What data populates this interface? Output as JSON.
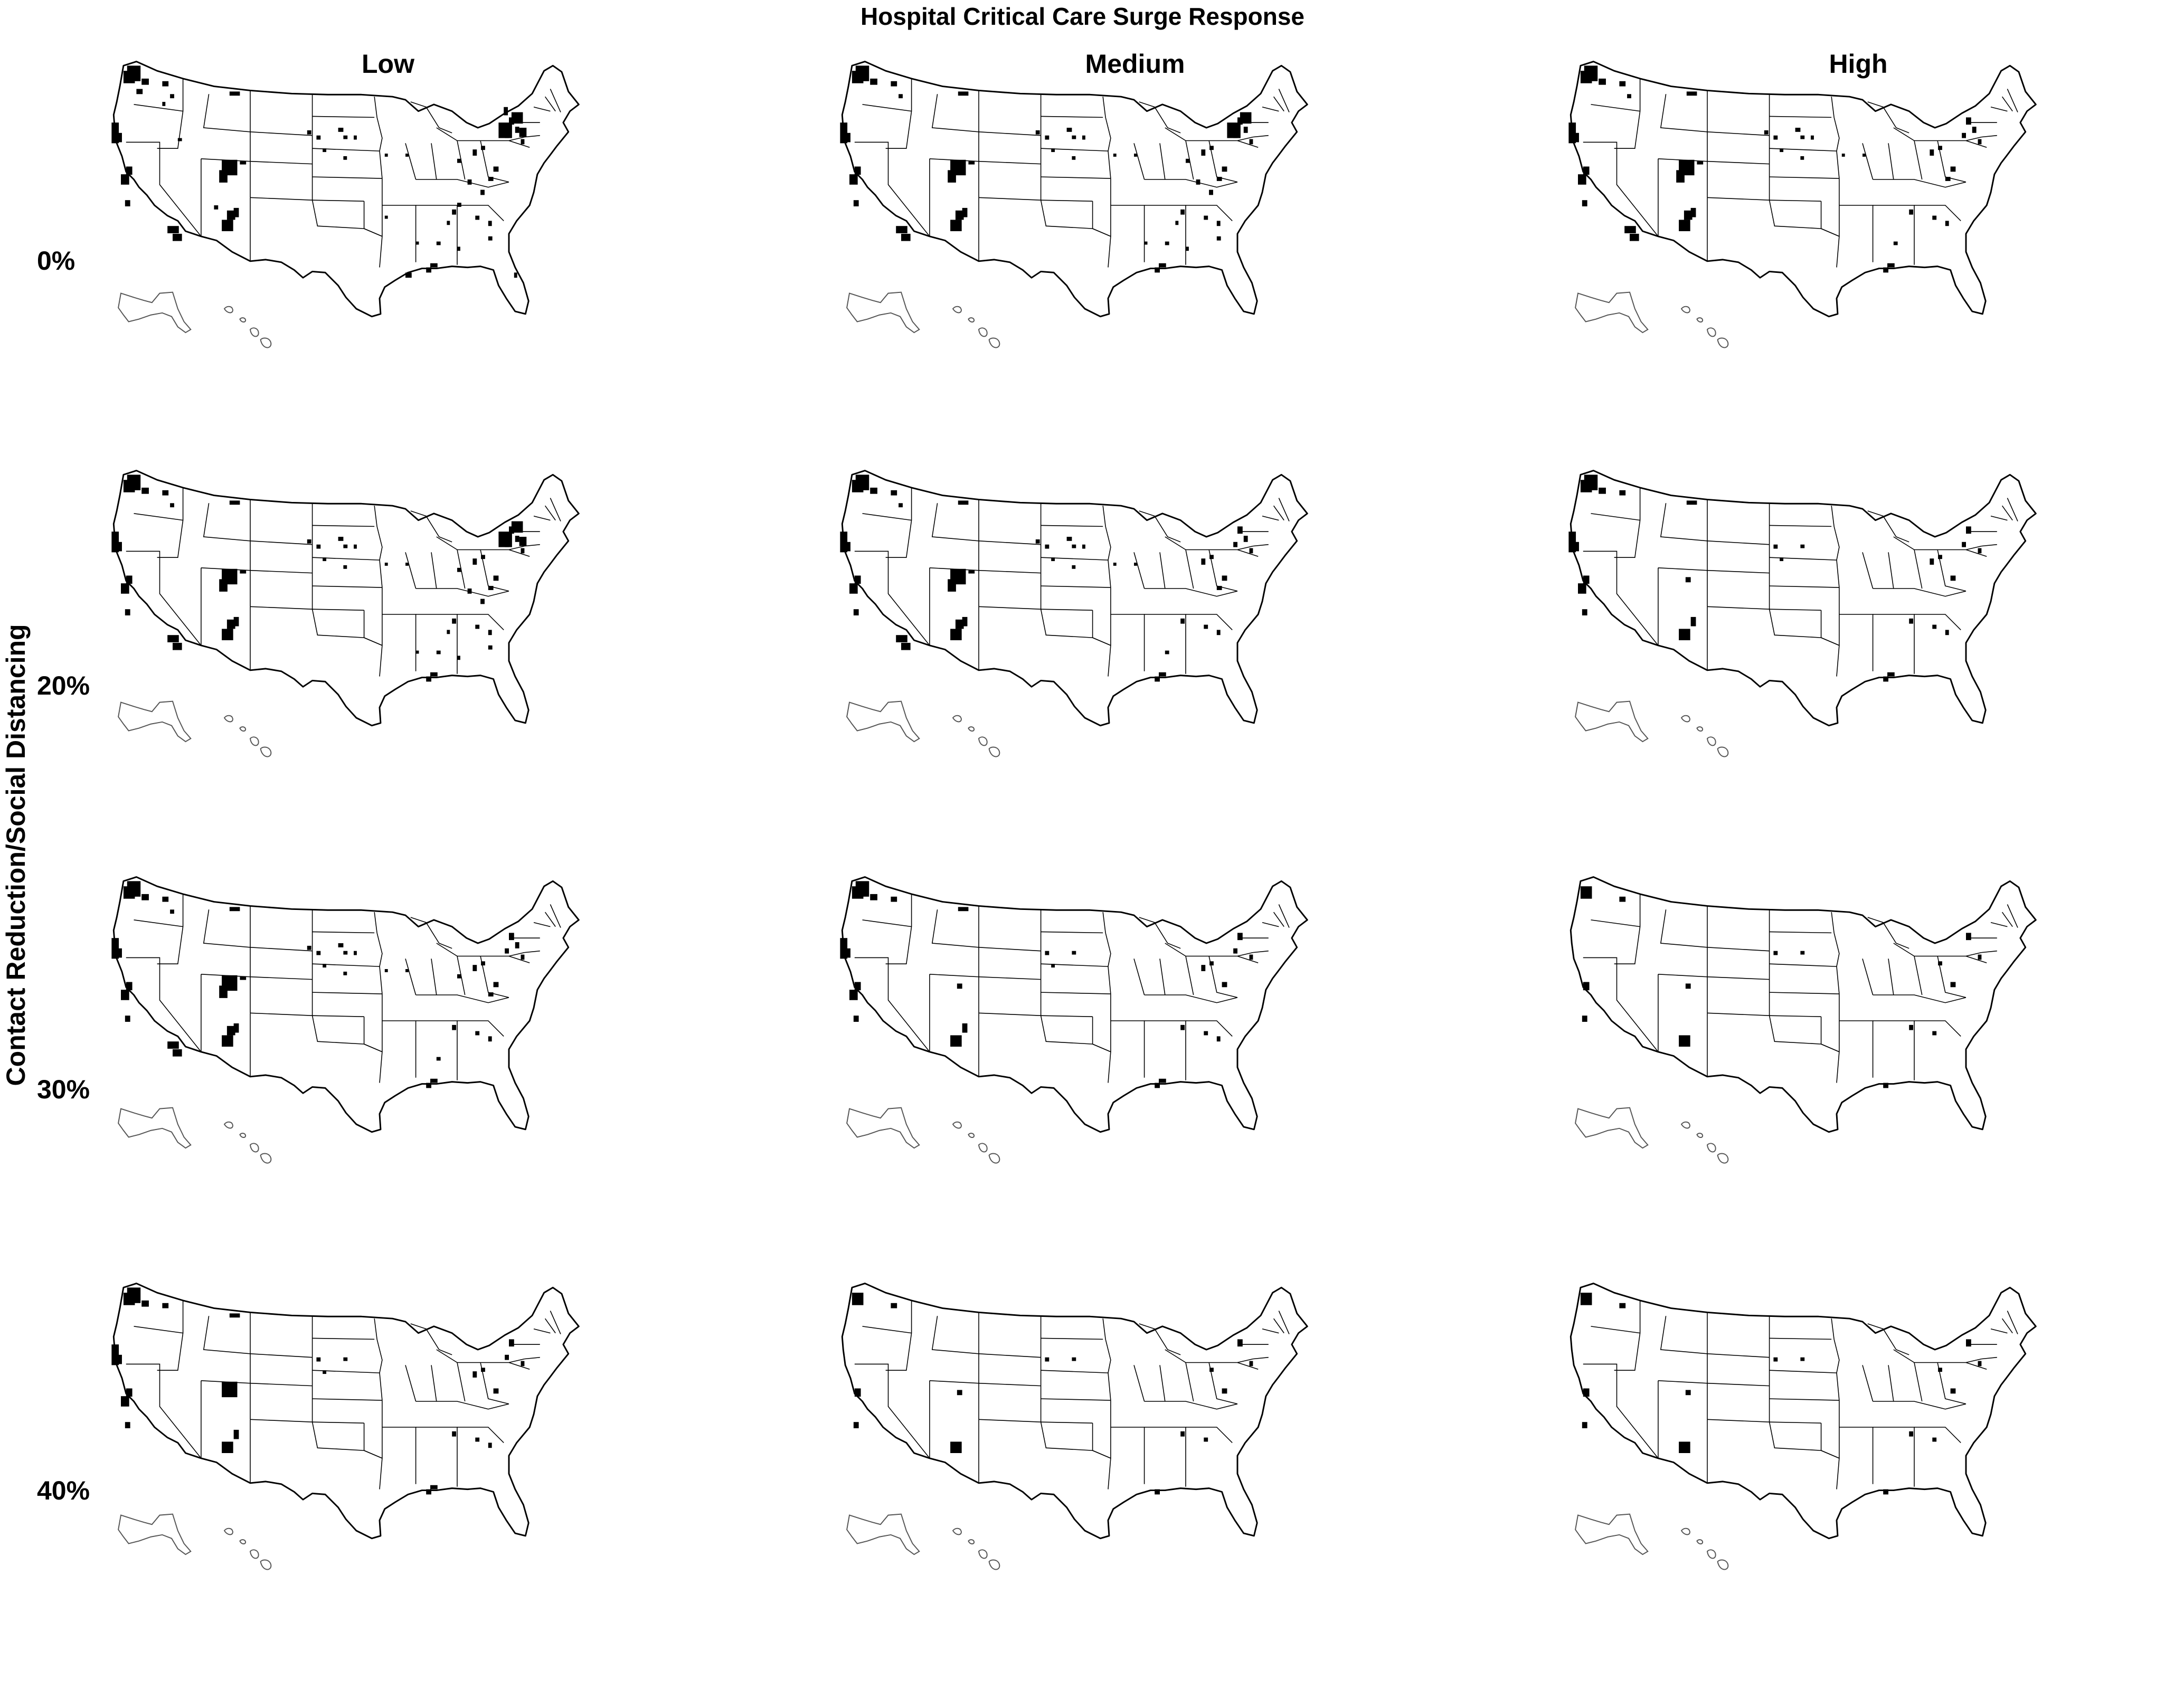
{
  "title": "Hospital Critical Care Surge Response",
  "y_axis_title": "Contact Reduction/Social Distancing",
  "columns": [
    "Low",
    "Medium",
    "High"
  ],
  "rows": [
    "0%",
    "20%",
    "30%",
    "40%"
  ],
  "region": "Contiguous United States with Alaska and Hawaii insets",
  "colors": {
    "highlight": "#000000",
    "land": "#ffffff",
    "outline": "#000000"
  }
}
